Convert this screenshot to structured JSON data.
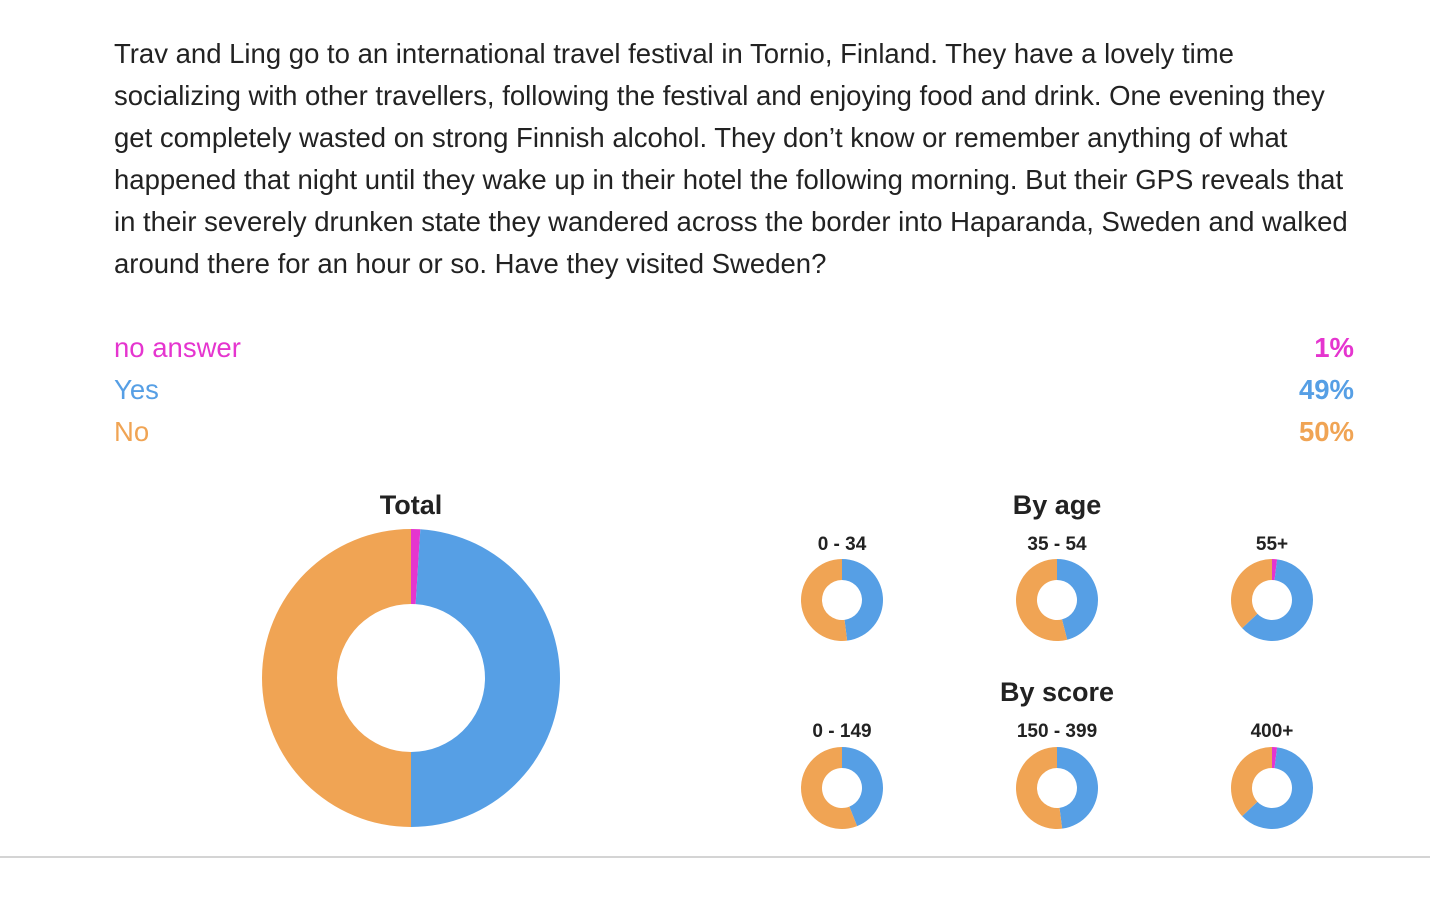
{
  "question": "Trav and Ling go to an international travel festival in Tornio, Finland. They have a lovely time socializing with other travellers, following the festival and enjoying food and drink. One evening they get completely wasted on strong Finnish alcohol. They don’t know or remember anything of what happened that night until they wake up in their hotel the following morning. But their GPS reveals that in their severely drunken state they wandered across the border into Haparanda, Sweden and walked around there for an hour or so. Have they visited Sweden?",
  "answers": [
    {
      "label": "no answer",
      "pct": "1%",
      "color": "#e535cf"
    },
    {
      "label": "Yes",
      "pct": "49%",
      "color": "#569fe5"
    },
    {
      "label": "No",
      "pct": "50%",
      "color": "#f0a454"
    }
  ],
  "chart_data": [
    {
      "type": "pie",
      "title": "Total",
      "categories": [
        "no answer",
        "Yes",
        "No"
      ],
      "values": [
        1,
        49,
        50
      ]
    },
    {
      "type": "pie",
      "group": "By age",
      "title": "0 - 34",
      "categories": [
        "no answer",
        "Yes",
        "No"
      ],
      "values": [
        0,
        48,
        52
      ]
    },
    {
      "type": "pie",
      "group": "By age",
      "title": "35 - 54",
      "categories": [
        "no answer",
        "Yes",
        "No"
      ],
      "values": [
        0,
        46,
        54
      ]
    },
    {
      "type": "pie",
      "group": "By age",
      "title": "55+",
      "categories": [
        "no answer",
        "Yes",
        "No"
      ],
      "values": [
        2,
        61,
        37
      ]
    },
    {
      "type": "pie",
      "group": "By score",
      "title": "0 - 149",
      "categories": [
        "no answer",
        "Yes",
        "No"
      ],
      "values": [
        0,
        44,
        56
      ]
    },
    {
      "type": "pie",
      "group": "By score",
      "title": "150 - 399",
      "categories": [
        "no answer",
        "Yes",
        "No"
      ],
      "values": [
        0,
        48,
        52
      ]
    },
    {
      "type": "pie",
      "group": "By score",
      "title": "400+",
      "categories": [
        "no answer",
        "Yes",
        "No"
      ],
      "values": [
        2,
        61,
        37
      ]
    }
  ],
  "groups": {
    "by_age": "By age",
    "by_score": "By score"
  },
  "colors": {
    "no_answer": "#e535cf",
    "yes": "#569fe5",
    "no": "#f0a454"
  }
}
